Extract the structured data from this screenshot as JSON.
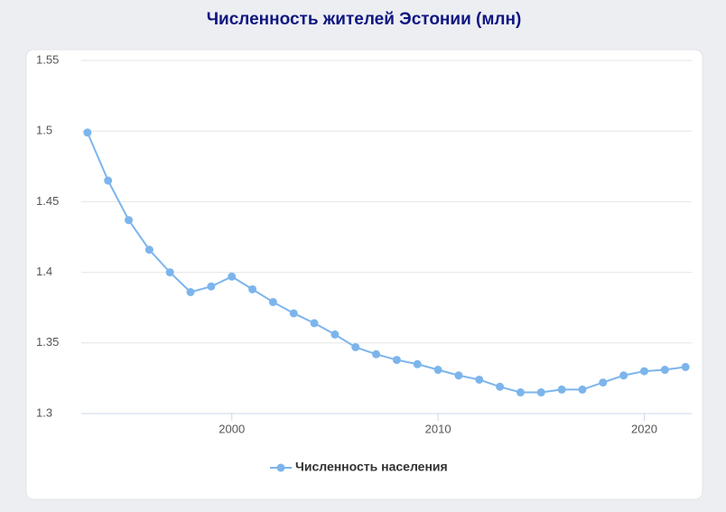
{
  "chart_data": {
    "type": "line",
    "title": "Численность жителей Эстонии (млн)",
    "x": [
      1993,
      1994,
      1995,
      1996,
      1997,
      1998,
      1999,
      2000,
      2001,
      2002,
      2003,
      2004,
      2005,
      2006,
      2007,
      2008,
      2009,
      2010,
      2011,
      2012,
      2013,
      2014,
      2015,
      2016,
      2017,
      2018,
      2019,
      2020,
      2021,
      2022
    ],
    "series": [
      {
        "name": "Численность населения",
        "color": "#7cb5ec",
        "values": [
          1.499,
          1.465,
          1.437,
          1.416,
          1.4,
          1.386,
          1.39,
          1.397,
          1.388,
          1.379,
          1.371,
          1.364,
          1.356,
          1.347,
          1.342,
          1.338,
          1.335,
          1.331,
          1.327,
          1.324,
          1.319,
          1.315,
          1.315,
          1.317,
          1.317,
          1.322,
          1.327,
          1.33,
          1.331,
          1.333
        ]
      }
    ],
    "xlim": [
      1992.7,
      2022.3
    ],
    "xticks": [
      2000,
      2010,
      2020
    ],
    "ylim": [
      1.3,
      1.55
    ],
    "yticks": [
      1.3,
      1.35,
      1.4,
      1.45,
      1.5,
      1.55
    ],
    "grid": true
  }
}
